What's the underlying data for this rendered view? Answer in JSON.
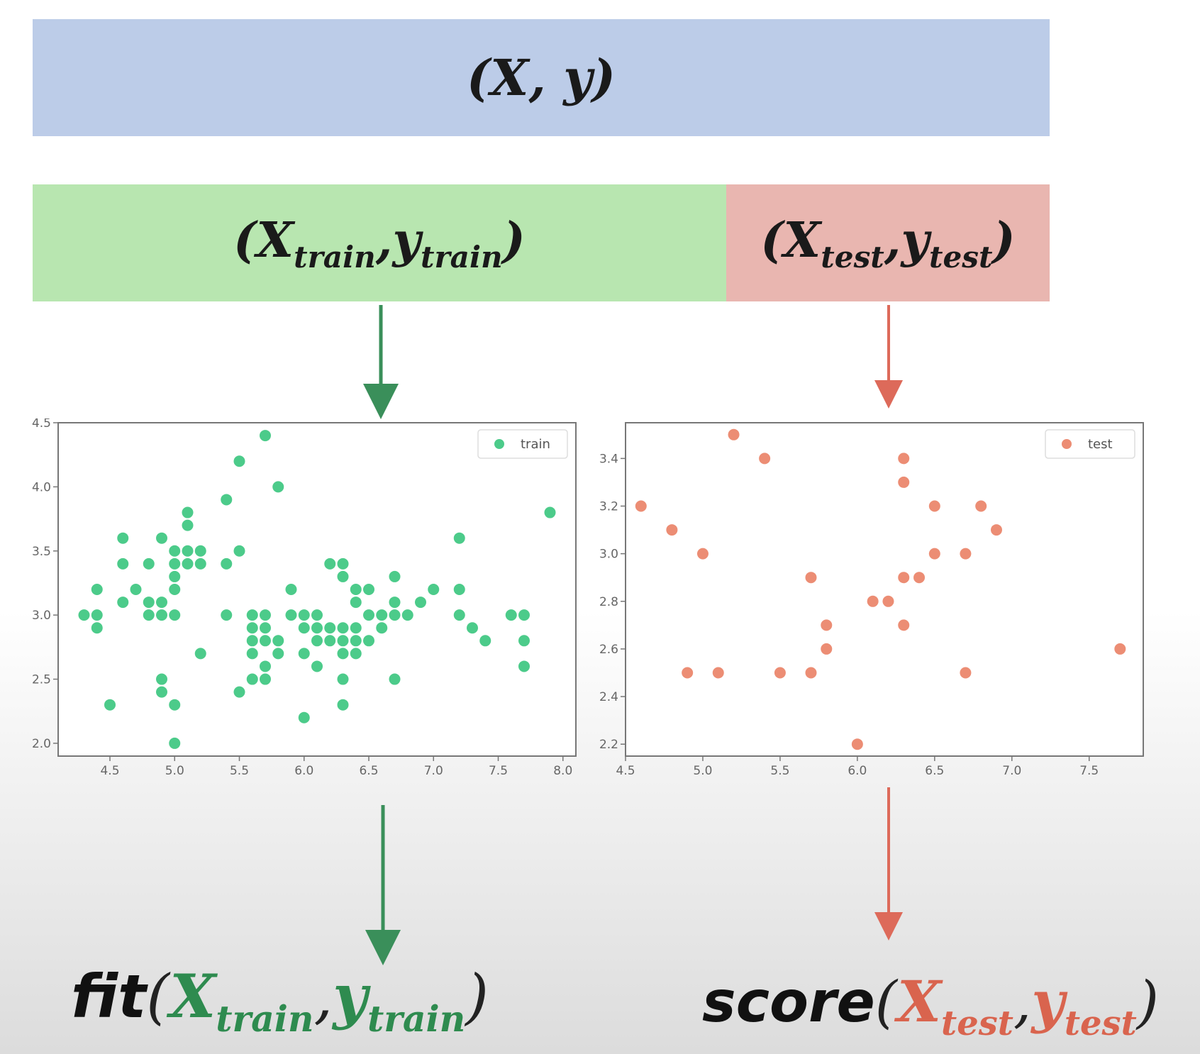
{
  "full_dataset": {
    "open": "(",
    "X": "X",
    "comma": ",",
    "y": "y",
    "close": ")"
  },
  "train_split": {
    "open": "(",
    "X": "X",
    "X_sub": "train",
    "comma": ",",
    "y": "y",
    "y_sub": "train",
    "close": ")"
  },
  "test_split": {
    "open": "(",
    "X": "X",
    "X_sub": "test",
    "comma": ",",
    "y": "y",
    "y_sub": "test",
    "close": ")"
  },
  "fit_call": {
    "name": "fit",
    "open": "(",
    "X": "X",
    "X_sub": "train",
    "comma": ",",
    "y": "y",
    "y_sub": "train",
    "close": ")"
  },
  "score_call": {
    "name": "score",
    "open": "(",
    "X": "X",
    "X_sub": "test",
    "comma": ",",
    "y": "y",
    "y_sub": "test",
    "close": ")"
  },
  "colors": {
    "full_box": "#bccce8",
    "train_box": "#b8e6b0",
    "test_box": "#e9b6b0",
    "train_arrow": "#3a8f5a",
    "test_arrow": "#dd6a5a",
    "train_points": "#4ccb8a",
    "test_points": "#ec8d74"
  },
  "chart_data": [
    {
      "type": "scatter",
      "legend": [
        "train"
      ],
      "legend_position": "top-right",
      "xlim": [
        4.1,
        8.1
      ],
      "ylim": [
        1.9,
        4.5
      ],
      "xticks": [
        "4.5",
        "5.0",
        "5.5",
        "6.0",
        "6.5",
        "7.0",
        "7.5",
        "8.0"
      ],
      "yticks": [
        "2.0",
        "2.5",
        "3.0",
        "3.5",
        "4.0",
        "4.5"
      ],
      "series": [
        {
          "name": "train",
          "points": [
            [
              4.3,
              3.0
            ],
            [
              4.4,
              3.0
            ],
            [
              4.4,
              2.9
            ],
            [
              4.4,
              3.2
            ],
            [
              4.5,
              2.3
            ],
            [
              4.6,
              3.1
            ],
            [
              4.6,
              3.4
            ],
            [
              4.6,
              3.6
            ],
            [
              4.7,
              3.2
            ],
            [
              4.8,
              3.0
            ],
            [
              4.8,
              3.1
            ],
            [
              4.8,
              3.4
            ],
            [
              4.9,
              3.0
            ],
            [
              4.9,
              3.1
            ],
            [
              4.9,
              3.6
            ],
            [
              4.9,
              2.5
            ],
            [
              4.9,
              2.4
            ],
            [
              5.0,
              3.0
            ],
            [
              5.0,
              3.2
            ],
            [
              5.0,
              3.3
            ],
            [
              5.0,
              3.4
            ],
            [
              5.0,
              3.5
            ],
            [
              5.0,
              2.3
            ],
            [
              5.0,
              2.0
            ],
            [
              5.1,
              3.4
            ],
            [
              5.1,
              3.5
            ],
            [
              5.1,
              3.7
            ],
            [
              5.1,
              3.8
            ],
            [
              5.2,
              3.4
            ],
            [
              5.2,
              3.5
            ],
            [
              5.2,
              2.7
            ],
            [
              5.4,
              3.4
            ],
            [
              5.4,
              3.9
            ],
            [
              5.4,
              3.0
            ],
            [
              5.5,
              4.2
            ],
            [
              5.5,
              3.5
            ],
            [
              5.5,
              2.4
            ],
            [
              5.6,
              3.0
            ],
            [
              5.6,
              2.9
            ],
            [
              5.6,
              2.8
            ],
            [
              5.6,
              2.7
            ],
            [
              5.6,
              2.5
            ],
            [
              5.7,
              4.4
            ],
            [
              5.7,
              3.0
            ],
            [
              5.7,
              2.8
            ],
            [
              5.7,
              2.9
            ],
            [
              5.7,
              2.6
            ],
            [
              5.7,
              2.5
            ],
            [
              5.8,
              4.0
            ],
            [
              5.8,
              2.7
            ],
            [
              5.8,
              2.8
            ],
            [
              5.9,
              3.2
            ],
            [
              5.9,
              3.0
            ],
            [
              6.0,
              3.0
            ],
            [
              6.0,
              2.9
            ],
            [
              6.0,
              2.7
            ],
            [
              6.0,
              2.2
            ],
            [
              6.1,
              3.0
            ],
            [
              6.1,
              2.9
            ],
            [
              6.1,
              2.8
            ],
            [
              6.1,
              2.6
            ],
            [
              6.2,
              2.8
            ],
            [
              6.2,
              3.4
            ],
            [
              6.2,
              2.9
            ],
            [
              6.3,
              3.4
            ],
            [
              6.3,
              3.3
            ],
            [
              6.3,
              2.8
            ],
            [
              6.3,
              2.7
            ],
            [
              6.3,
              2.5
            ],
            [
              6.3,
              2.3
            ],
            [
              6.3,
              2.9
            ],
            [
              6.4,
              2.8
            ],
            [
              6.4,
              2.7
            ],
            [
              6.4,
              2.9
            ],
            [
              6.4,
              3.1
            ],
            [
              6.4,
              3.2
            ],
            [
              6.5,
              3.2
            ],
            [
              6.5,
              3.0
            ],
            [
              6.5,
              2.8
            ],
            [
              6.6,
              2.9
            ],
            [
              6.6,
              3.0
            ],
            [
              6.7,
              3.3
            ],
            [
              6.7,
              3.1
            ],
            [
              6.7,
              3.0
            ],
            [
              6.7,
              2.5
            ],
            [
              6.8,
              3.0
            ],
            [
              6.9,
              3.1
            ],
            [
              7.0,
              3.2
            ],
            [
              7.2,
              3.6
            ],
            [
              7.2,
              3.2
            ],
            [
              7.2,
              3.0
            ],
            [
              7.3,
              2.9
            ],
            [
              7.4,
              2.8
            ],
            [
              7.6,
              3.0
            ],
            [
              7.7,
              3.0
            ],
            [
              7.7,
              2.8
            ],
            [
              7.7,
              2.6
            ],
            [
              7.9,
              3.8
            ]
          ]
        }
      ]
    },
    {
      "type": "scatter",
      "legend": [
        "test"
      ],
      "legend_position": "top-right",
      "xlim": [
        4.5,
        7.85
      ],
      "ylim": [
        2.15,
        3.55
      ],
      "xticks": [
        "4.5",
        "5.0",
        "5.5",
        "6.0",
        "6.5",
        "7.0",
        "7.5"
      ],
      "yticks": [
        "2.2",
        "2.4",
        "2.6",
        "2.8",
        "3.0",
        "3.2",
        "3.4"
      ],
      "series": [
        {
          "name": "test",
          "points": [
            [
              4.6,
              3.2
            ],
            [
              4.8,
              3.1
            ],
            [
              4.9,
              2.5
            ],
            [
              5.0,
              3.0
            ],
            [
              5.1,
              2.5
            ],
            [
              5.2,
              3.5
            ],
            [
              5.4,
              3.4
            ],
            [
              5.5,
              2.5
            ],
            [
              5.7,
              2.9
            ],
            [
              5.7,
              2.5
            ],
            [
              5.8,
              2.7
            ],
            [
              5.8,
              2.6
            ],
            [
              6.0,
              2.2
            ],
            [
              6.1,
              2.8
            ],
            [
              6.2,
              2.8
            ],
            [
              6.3,
              3.4
            ],
            [
              6.3,
              3.3
            ],
            [
              6.3,
              2.9
            ],
            [
              6.3,
              2.7
            ],
            [
              6.4,
              2.9
            ],
            [
              6.5,
              3.2
            ],
            [
              6.5,
              3.0
            ],
            [
              6.7,
              3.0
            ],
            [
              6.7,
              2.5
            ],
            [
              6.8,
              3.2
            ],
            [
              6.9,
              3.1
            ],
            [
              7.7,
              2.6
            ]
          ]
        }
      ]
    }
  ]
}
